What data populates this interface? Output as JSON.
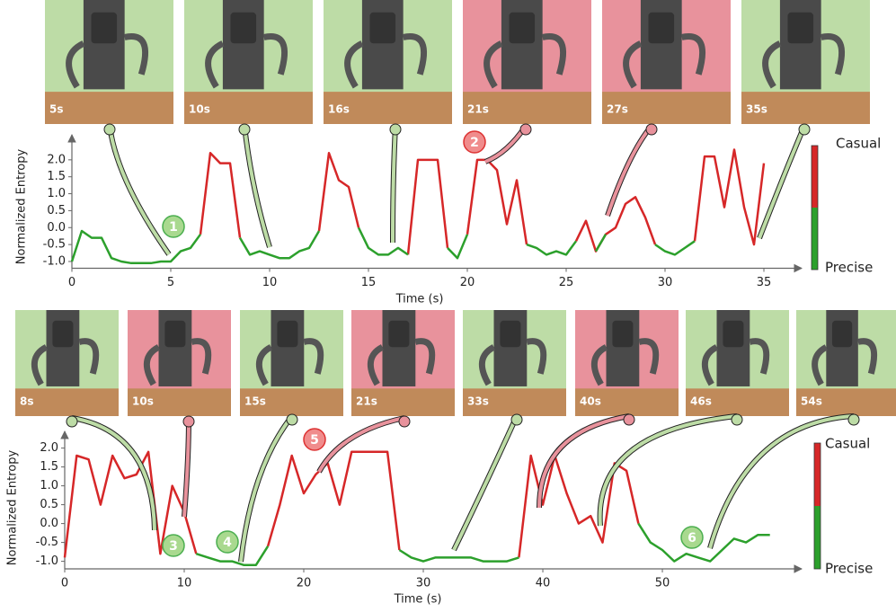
{
  "chart_data": [
    {
      "type": "line",
      "x_label": "Time (s)",
      "y_label": "Normalized Entropy",
      "x": [
        0,
        0.5,
        1,
        1.5,
        2,
        2.5,
        3,
        3.5,
        4,
        4.5,
        5,
        5.5,
        6,
        6.5,
        7,
        7.5,
        8,
        8.5,
        9,
        9.5,
        10,
        10.5,
        11,
        11.5,
        12,
        12.5,
        13,
        13.5,
        14,
        14.5,
        15,
        15.5,
        16,
        16.5,
        17,
        17.5,
        18,
        18.5,
        19,
        19.5,
        20,
        20.5,
        21,
        21.5,
        22,
        22.5,
        23,
        23.5,
        24,
        24.5,
        25,
        25.5,
        26,
        26.5,
        27,
        27.5,
        28,
        28.5,
        29,
        29.5,
        30,
        30.5,
        31,
        31.5,
        32,
        32.5,
        33,
        33.5,
        34,
        34.5,
        35
      ],
      "series": [
        {
          "name": "Casual",
          "color": "#d62728",
          "values": [
            null,
            null,
            null,
            null,
            null,
            null,
            null,
            null,
            null,
            null,
            null,
            null,
            null,
            -0.2,
            2.2,
            1.9,
            1.9,
            -0.3,
            null,
            null,
            null,
            null,
            null,
            null,
            null,
            -0.1,
            2.2,
            1.4,
            1.2,
            0.0,
            null,
            null,
            null,
            null,
            -0.8,
            2.0,
            2.0,
            2.0,
            -0.6,
            null,
            -0.2,
            2.0,
            2.0,
            1.7,
            0.1,
            1.4,
            -0.5,
            null,
            null,
            null,
            null,
            -0.4,
            0.2,
            -0.7,
            -0.2,
            0.0,
            0.7,
            0.9,
            0.3,
            -0.5,
            null,
            null,
            null,
            -0.4,
            2.1,
            2.1,
            0.6,
            2.3,
            0.6,
            -0.5,
            1.9
          ]
        },
        {
          "name": "Precise",
          "color": "#2ca02c",
          "values": [
            -1.0,
            -0.1,
            -0.3,
            -0.3,
            -0.9,
            -1.0,
            -1.05,
            -1.05,
            -1.05,
            -1.0,
            -1.0,
            -0.7,
            -0.6,
            -0.2,
            null,
            null,
            null,
            -0.3,
            -0.8,
            -0.7,
            -0.8,
            -0.9,
            -0.9,
            -0.7,
            -0.6,
            -0.1,
            null,
            null,
            null,
            0.0,
            -0.6,
            -0.8,
            -0.8,
            -0.6,
            -0.8,
            null,
            null,
            null,
            -0.6,
            -0.9,
            -0.2,
            null,
            null,
            null,
            null,
            null,
            -0.5,
            -0.6,
            -0.8,
            -0.7,
            -0.8,
            -0.4,
            null,
            -0.7,
            -0.2,
            null,
            null,
            null,
            null,
            -0.5,
            -0.7,
            -0.8,
            -0.6,
            -0.4,
            null,
            null,
            null,
            null,
            null,
            -0.5,
            null
          ]
        }
      ],
      "xlim": [
        0,
        36.2
      ],
      "xticks": [
        0,
        5,
        10,
        15,
        20,
        25,
        30,
        35
      ],
      "ylim": [
        -1.2,
        2.5
      ],
      "yticks": [
        {
          "value": -1.0,
          "label": "-1.0"
        },
        {
          "value": -0.5,
          "label": "-0.5"
        },
        {
          "value": 0.0,
          "label": "0.0"
        },
        {
          "value": 0.5,
          "label": "0.5"
        },
        {
          "value": 1.0,
          "label": "1.0"
        },
        {
          "value": 1.5,
          "label": "1.5"
        },
        {
          "value": 2.0,
          "label": "2.0"
        }
      ],
      "frames": [
        "5s",
        "10s",
        "16s",
        "21s",
        "27s",
        "35s"
      ],
      "annotations": [
        "1",
        "2"
      ]
    },
    {
      "type": "line",
      "x_label": "Time (s)",
      "y_label": "Normalized Entropy",
      "x": [
        0,
        1,
        2,
        3,
        4,
        5,
        6,
        7,
        8,
        9,
        10,
        11,
        12,
        13,
        14,
        15,
        16,
        17,
        18,
        19,
        20,
        21,
        22,
        23,
        24,
        25,
        26,
        27,
        28,
        29,
        30,
        31,
        32,
        33,
        34,
        35,
        36,
        37,
        38,
        39,
        40,
        41,
        42,
        43,
        44,
        45,
        46,
        47,
        48,
        49,
        50,
        51,
        52,
        53,
        54,
        55,
        56,
        57,
        58,
        59
      ],
      "series": [
        {
          "name": "Casual",
          "color": "#d62728",
          "values": [
            -0.9,
            1.8,
            1.7,
            0.5,
            1.8,
            1.2,
            1.3,
            1.9,
            -0.8,
            1.0,
            0.3,
            -0.8,
            null,
            null,
            null,
            null,
            null,
            -0.6,
            0.5,
            1.8,
            0.8,
            1.3,
            1.6,
            0.5,
            1.9,
            1.9,
            1.9,
            1.9,
            -0.7,
            null,
            null,
            null,
            null,
            null,
            null,
            null,
            null,
            null,
            -0.9,
            1.8,
            0.5,
            1.8,
            0.8,
            0.0,
            0.2,
            -0.5,
            1.6,
            1.4,
            0.0,
            null,
            null,
            null,
            null,
            null,
            null,
            null,
            null,
            null,
            null,
            null
          ]
        },
        {
          "name": "Precise",
          "color": "#2ca02c",
          "values": [
            -0.9,
            null,
            null,
            null,
            null,
            null,
            null,
            null,
            -0.8,
            null,
            null,
            -0.8,
            -0.9,
            -1.0,
            -1.0,
            -1.1,
            -1.1,
            -0.6,
            null,
            null,
            null,
            null,
            null,
            null,
            null,
            null,
            null,
            null,
            -0.7,
            -0.9,
            -1.0,
            -0.9,
            -0.9,
            -0.9,
            -0.9,
            -1.0,
            -1.0,
            -1.0,
            -0.9,
            null,
            null,
            null,
            null,
            null,
            null,
            null,
            null,
            null,
            0.0,
            -0.5,
            -0.7,
            -1.0,
            -0.8,
            -0.9,
            -1.0,
            -0.7,
            -0.4,
            -0.5,
            -0.3,
            -0.3
          ]
        }
      ],
      "xlim": [
        0,
        59.2
      ],
      "xticks": [
        0,
        10,
        20,
        30,
        40,
        50
      ],
      "ylim": [
        -1.2,
        2.3
      ],
      "yticks": [
        {
          "value": -1.0,
          "label": "-1.0"
        },
        {
          "value": -0.5,
          "label": "-0.5"
        },
        {
          "value": 0.0,
          "label": "0.0"
        },
        {
          "value": 0.5,
          "label": "0.5"
        },
        {
          "value": 1.0,
          "label": "1.0"
        },
        {
          "value": 1.5,
          "label": "1.5"
        },
        {
          "value": 2.0,
          "label": "2.0"
        }
      ],
      "frames": [
        "8s",
        "10s",
        "15s",
        "21s",
        "33s",
        "40s",
        "46s",
        "54s"
      ],
      "annotations": [
        "3",
        "4",
        "5",
        "6"
      ]
    }
  ]
}
